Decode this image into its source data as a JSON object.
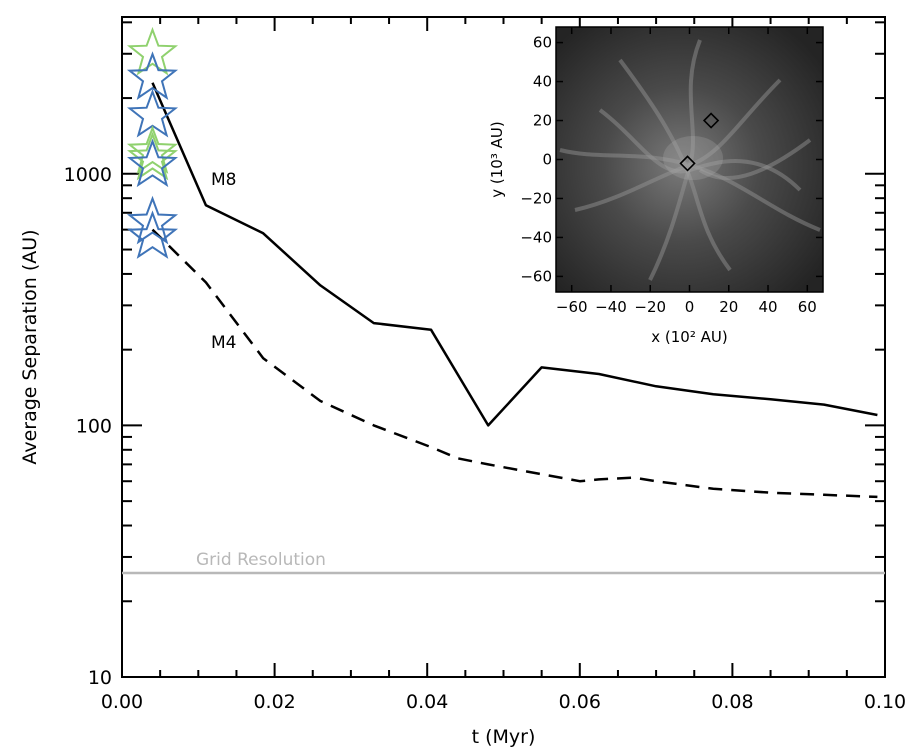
{
  "chart_data": [
    {
      "type": "line",
      "xlabel": "t (Myr)",
      "ylabel": "Average Separation (AU)",
      "xlim": [
        0.0,
        0.1
      ],
      "ylim": [
        10,
        4200
      ],
      "yscale": "log",
      "x_ticks": [
        "0.00",
        "0.02",
        "0.04",
        "0.06",
        "0.08",
        "0.10"
      ],
      "y_ticks": [
        "10",
        "100",
        "1000"
      ],
      "series": [
        {
          "name": "M8",
          "style": "solid",
          "color": "#000000",
          "x": [
            0.004,
            0.011,
            0.0185,
            0.026,
            0.033,
            0.0405,
            0.048,
            0.055,
            0.0625,
            0.07,
            0.0775,
            0.085,
            0.092,
            0.099
          ],
          "y": [
            2300,
            750,
            580,
            360,
            255,
            240,
            100,
            170,
            160,
            143,
            133,
            127,
            121,
            110
          ]
        },
        {
          "name": "M4",
          "style": "dashed",
          "color": "#000000",
          "x": [
            0.004,
            0.011,
            0.0185,
            0.026,
            0.033,
            0.0405,
            0.044,
            0.048,
            0.055,
            0.06,
            0.0625,
            0.067,
            0.07,
            0.0775,
            0.085,
            0.092,
            0.099
          ],
          "y": [
            600,
            370,
            185,
            125,
            100,
            82,
            74,
            70,
            64,
            60,
            61,
            62,
            60,
            56,
            54,
            53,
            52
          ]
        }
      ],
      "reference_line": {
        "label": "Grid Resolution",
        "y": 25.9,
        "color": "#b8b8b8"
      },
      "markers": [
        {
          "x": 0.004,
          "y": 3000,
          "color": "#8fd16e"
        },
        {
          "x": 0.004,
          "y": 2400,
          "color": "#3f74b8"
        },
        {
          "x": 0.004,
          "y": 1700,
          "color": "#3f74b8"
        },
        {
          "x": 0.004,
          "y": 1220,
          "color": "#8fd16e"
        },
        {
          "x": 0.004,
          "y": 1150,
          "color": "#8fd16e"
        },
        {
          "x": 0.004,
          "y": 1080,
          "color": "#3f74b8"
        },
        {
          "x": 0.004,
          "y": 640,
          "color": "#3f74b8"
        },
        {
          "x": 0.004,
          "y": 560,
          "color": "#3f74b8"
        }
      ],
      "grid": false
    },
    {
      "type": "scatter",
      "xlabel": "x (10² AU)",
      "ylabel": "y (10³ AU)",
      "xlim": [
        -68,
        68
      ],
      "ylim": [
        -68,
        68
      ],
      "x_ticks": [
        "−60",
        "−40",
        "−20",
        "0",
        "20",
        "40",
        "60"
      ],
      "y_ticks": [
        "−60",
        "−40",
        "−20",
        "0",
        "20",
        "40",
        "60"
      ],
      "points": [
        {
          "x": 11,
          "y": 20
        },
        {
          "x": -1,
          "y": -2
        }
      ],
      "background": "grayscale density map"
    }
  ]
}
